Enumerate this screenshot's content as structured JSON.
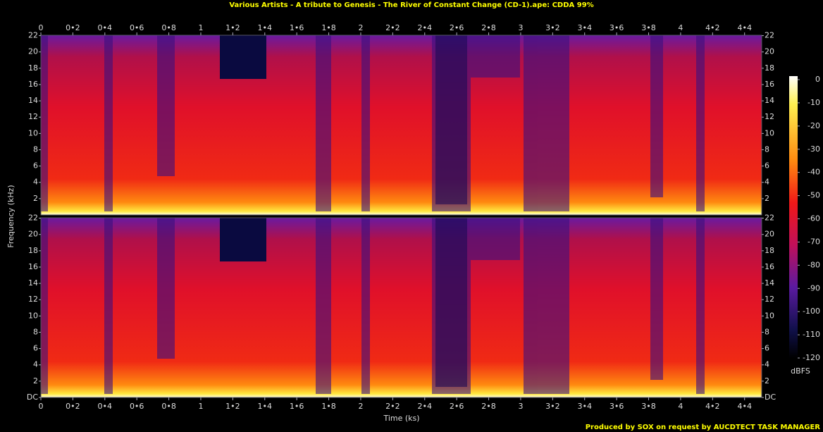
{
  "chart_data": {
    "type": "spectrogram",
    "title": "Various Artists - A tribute to Genesis - The River of Constant Change (CD-1).ape: CDDA 99%",
    "xlabel": "Time (ks)",
    "ylabel": "Frequency (kHz)",
    "xlim": [
      0,
      4.507
    ],
    "xticks": [
      0,
      {
        "value": 0.2,
        "label": "0•2"
      },
      {
        "value": 0.4,
        "label": "0•4"
      },
      {
        "value": 0.6,
        "label": "0•6"
      },
      {
        "value": 0.8,
        "label": "0•8"
      },
      1,
      {
        "value": 1.2,
        "label": "1•2"
      },
      {
        "value": 1.4,
        "label": "1•4"
      },
      {
        "value": 1.6,
        "label": "1•6"
      },
      {
        "value": 1.8,
        "label": "1•8"
      },
      2,
      {
        "value": 2.2,
        "label": "2•2"
      },
      {
        "value": 2.4,
        "label": "2•4"
      },
      {
        "value": 2.6,
        "label": "2•6"
      },
      {
        "value": 2.8,
        "label": "2•8"
      },
      3,
      {
        "value": 3.2,
        "label": "3•2"
      },
      {
        "value": 3.4,
        "label": "3•4"
      },
      {
        "value": 3.6,
        "label": "3•6"
      },
      {
        "value": 3.8,
        "label": "3•8"
      },
      4,
      {
        "value": 4.2,
        "label": "4•2"
      },
      {
        "value": 4.4,
        "label": "4•4"
      }
    ],
    "ylim": [
      0,
      22.05
    ],
    "yticks": [
      {
        "value": 0,
        "label": "DC"
      },
      2,
      4,
      6,
      8,
      10,
      12,
      14,
      16,
      18,
      20,
      22
    ],
    "colorbar": {
      "label": "dBFS",
      "lim": [
        -120,
        0
      ],
      "ticks": [
        0,
        -10,
        -20,
        -30,
        -40,
        -50,
        -60,
        -70,
        -80,
        -90,
        -100,
        -110,
        -120
      ]
    },
    "footer": "Produced by SOX on request by AUCDTECT TASK MANAGER"
  }
}
